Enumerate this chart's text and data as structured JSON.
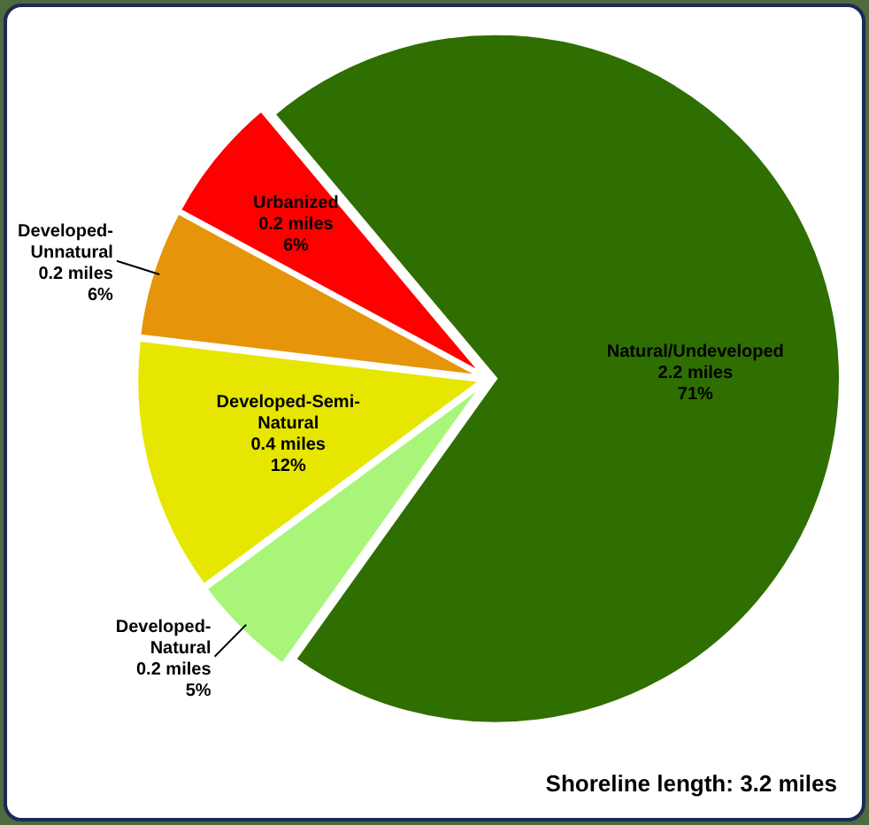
{
  "chart_data": {
    "type": "pie",
    "categories": [
      "Natural/Undeveloped",
      "Developed-Natural",
      "Developed-Semi-Natural",
      "Developed-Unnatural",
      "Urbanized"
    ],
    "values": [
      71,
      5,
      12,
      6,
      6
    ],
    "colors": [
      "#2f6e00",
      "#a8f57a",
      "#e6e600",
      "#e6950a",
      "#ff0000"
    ],
    "value_labels": [
      "2.2 miles\n71%",
      "0.2 miles\n5%",
      "0.4 miles\n12%",
      "0.2 miles\n6%",
      "0.2 miles\n6%"
    ],
    "annotations": [
      "Shoreline length: 3.2 miles"
    ]
  }
}
